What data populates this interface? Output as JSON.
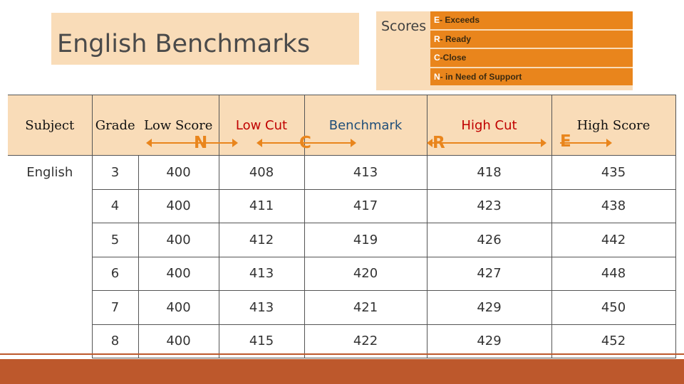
{
  "title": "English Benchmarks",
  "scores": {
    "label": "Scores",
    "items": [
      {
        "code": "E",
        "sep": "- ",
        "desc": "Exceeds"
      },
      {
        "code": "R",
        "sep": "- ",
        "desc": "Ready"
      },
      {
        "code": "C",
        "sep": "-",
        "desc": "Close"
      },
      {
        "code": "N",
        "sep": "- ",
        "desc": "in Need of Support"
      }
    ]
  },
  "markers": {
    "n": "N",
    "c": "C",
    "r": "R",
    "e": "E"
  },
  "table": {
    "headers": [
      "Subject",
      "Grade",
      "Low Score",
      "Low Cut",
      "Benchmark",
      "High Cut",
      "High Score"
    ],
    "subject": "English",
    "rows": [
      [
        "3",
        "400",
        "408",
        "413",
        "418",
        "435"
      ],
      [
        "4",
        "400",
        "411",
        "417",
        "423",
        "438"
      ],
      [
        "5",
        "400",
        "412",
        "419",
        "426",
        "442"
      ],
      [
        "6",
        "400",
        "413",
        "420",
        "427",
        "448"
      ],
      [
        "7",
        "400",
        "413",
        "421",
        "429",
        "450"
      ],
      [
        "8",
        "400",
        "415",
        "422",
        "429",
        "452"
      ]
    ]
  },
  "colors": {
    "accent": "#e9851c",
    "panel": "#f9dcb8",
    "footer": "#bd582c",
    "high_cut": "#c00000",
    "low_cut": "#c00000",
    "benchmark": "#1f4e79"
  }
}
